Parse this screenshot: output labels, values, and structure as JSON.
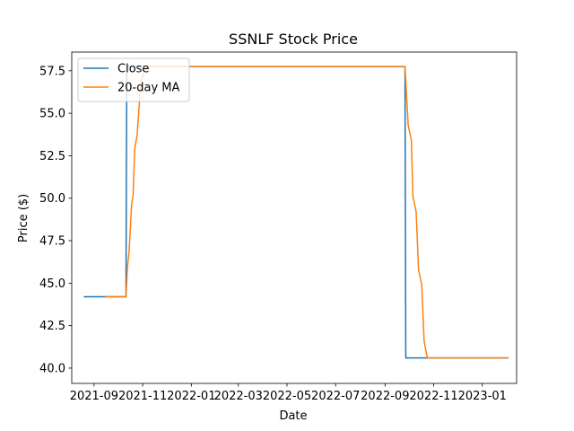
{
  "chart_data": {
    "type": "line",
    "title": "SSNLF Stock Price",
    "xlabel": "Date",
    "ylabel": "Price ($)",
    "x_ticks": [
      "2021-09",
      "2021-11",
      "2022-01",
      "2022-03",
      "2022-05",
      "2022-07",
      "2022-09",
      "2022-11",
      "2023-01"
    ],
    "y_ticks": [
      "40.0",
      "42.5",
      "45.0",
      "47.5",
      "50.0",
      "52.5",
      "55.0",
      "57.5"
    ],
    "xlim": [
      "2021-08-04",
      "2023-02-13"
    ],
    "ylim": [
      39.1,
      58.6
    ],
    "grid": false,
    "legend_position": "top-left",
    "series": [
      {
        "name": "Close",
        "color": "#1f77b4",
        "points": [
          [
            "2021-08-19",
            44.2
          ],
          [
            "2021-10-11",
            44.2
          ],
          [
            "2021-10-12",
            57.75
          ],
          [
            "2022-09-26",
            57.75
          ],
          [
            "2022-09-27",
            40.6
          ],
          [
            "2023-02-03",
            40.6
          ]
        ]
      },
      {
        "name": "20-day MA",
        "color": "#ff7f0e",
        "points": [
          [
            "2021-09-15",
            44.2
          ],
          [
            "2021-10-11",
            44.2
          ],
          [
            "2021-10-13",
            46.0
          ],
          [
            "2021-10-15",
            46.9
          ],
          [
            "2021-10-18",
            49.6
          ],
          [
            "2021-10-20",
            50.2
          ],
          [
            "2021-10-22",
            52.9
          ],
          [
            "2021-10-25",
            53.7
          ],
          [
            "2021-10-29",
            56.4
          ],
          [
            "2021-11-03",
            57.75
          ],
          [
            "2022-09-26",
            57.75
          ],
          [
            "2022-09-28",
            56.0
          ],
          [
            "2022-09-30",
            54.3
          ],
          [
            "2022-10-04",
            53.4
          ],
          [
            "2022-10-06",
            50.1
          ],
          [
            "2022-10-10",
            49.2
          ],
          [
            "2022-10-13",
            45.8
          ],
          [
            "2022-10-17",
            44.9
          ],
          [
            "2022-10-20",
            41.6
          ],
          [
            "2022-10-24",
            40.6
          ],
          [
            "2023-02-03",
            40.6
          ]
        ]
      }
    ]
  }
}
